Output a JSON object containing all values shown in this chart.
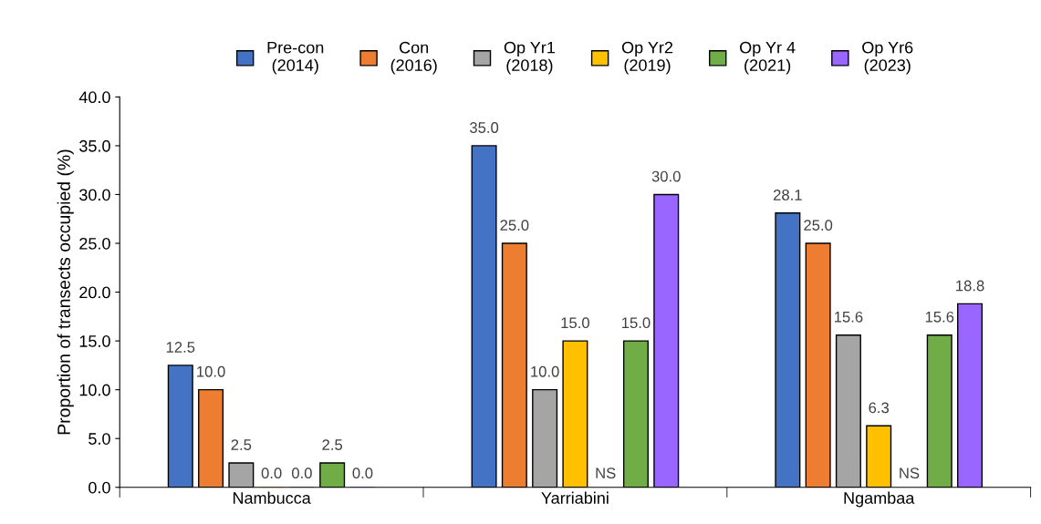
{
  "chart_data": {
    "type": "bar",
    "ylabel": "Proportion of transects occupied (%)",
    "categories": [
      "Nambucca",
      "Yarriabini",
      "Ngambaa"
    ],
    "series": [
      {
        "name": "Pre-con\n(2014)",
        "color": "#4472c4",
        "values": [
          12.5,
          35.0,
          28.1
        ],
        "value_labels": [
          "12.5",
          "35.0",
          "28.1"
        ]
      },
      {
        "name": "Con\n(2016)",
        "color": "#ed7d31",
        "values": [
          10.0,
          25.0,
          25.0
        ],
        "value_labels": [
          "10.0",
          "25.0",
          "25.0"
        ]
      },
      {
        "name": "Op Yr1\n(2018)",
        "color": "#a5a5a5",
        "values": [
          2.5,
          10.0,
          15.6
        ],
        "value_labels": [
          "2.5",
          "10.0",
          "15.6"
        ]
      },
      {
        "name": "Op Yr2\n(2019)",
        "color": "#ffc000",
        "values": [
          0.0,
          15.0,
          6.3
        ],
        "value_labels": [
          "0.0",
          "15.0",
          "6.3"
        ]
      },
      {
        "color": "#5b9bd5",
        "values": [
          0.0,
          null,
          null
        ],
        "value_labels": [
          "0.0",
          "NS",
          "NS"
        ]
      },
      {
        "name": "Op Yr 4\n(2021)",
        "color": "#70ad47",
        "values": [
          2.5,
          15.0,
          15.6
        ],
        "value_labels": [
          "2.5",
          "15.0",
          "15.6"
        ]
      },
      {
        "name": "Op Yr6\n(2023)",
        "color": "#9966ff",
        "values": [
          0.0,
          30.0,
          18.8
        ],
        "value_labels": [
          "0.0",
          "30.0",
          "18.8"
        ]
      }
    ],
    "ylim": [
      0,
      40
    ],
    "yticks": [
      {
        "value": 0,
        "label": "0.0"
      },
      {
        "value": 5,
        "label": "5.0"
      },
      {
        "value": 10,
        "label": "10.0"
      },
      {
        "value": 15,
        "label": "15.0"
      },
      {
        "value": 20,
        "label": "20.0"
      },
      {
        "value": 25,
        "label": "25.0"
      },
      {
        "value": 30,
        "label": "30.0"
      },
      {
        "value": 35,
        "label": "35.0"
      },
      {
        "value": 40,
        "label": "40.0"
      }
    ],
    "grid": false,
    "legend": "top"
  }
}
